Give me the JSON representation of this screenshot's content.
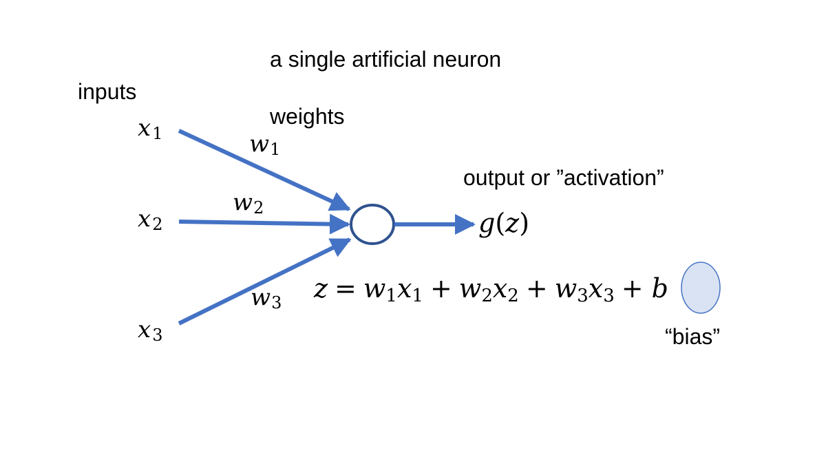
{
  "title": "a single artificial neuron",
  "labels": {
    "inputs": "inputs",
    "weights": "weights",
    "output": "output or ”activation”",
    "bias": "“bias”"
  },
  "inputs": [
    {
      "var": "x",
      "sub": "1"
    },
    {
      "var": "x",
      "sub": "2"
    },
    {
      "var": "x",
      "sub": "3"
    }
  ],
  "weights": [
    {
      "var": "w",
      "sub": "1"
    },
    {
      "var": "w",
      "sub": "2"
    },
    {
      "var": "w",
      "sub": "3"
    }
  ],
  "activation": {
    "func": "g",
    "open": "(",
    "arg": "z",
    "close": ")"
  },
  "equation": {
    "lhs": "z",
    "eq": "=",
    "plus": "+",
    "t1w": "w",
    "t1ws": "1",
    "t1x": "x",
    "t1xs": "1",
    "t2w": "w",
    "t2ws": "2",
    "t2x": "x",
    "t2xs": "2",
    "t3w": "w",
    "t3ws": "3",
    "t3x": "x",
    "t3xs": "3",
    "bias": "b"
  },
  "colors": {
    "arrow": "#4472C4",
    "neuron_stroke": "#2F528F",
    "bias_fill": "#DAE3F3",
    "bias_stroke": "#4472C4",
    "text": "#000000"
  }
}
